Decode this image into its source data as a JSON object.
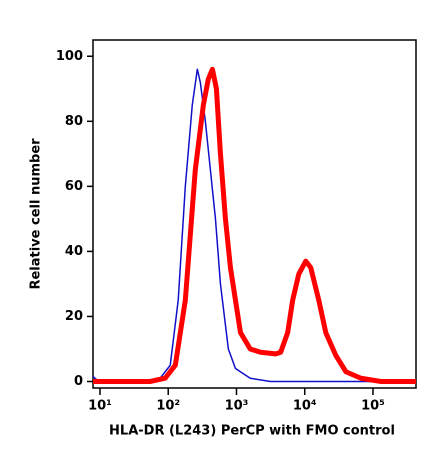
{
  "chart_data": {
    "type": "line",
    "x_label": "HLA-DR (L243) PerCP with FMO control",
    "y_label": "Relative cell number",
    "x_log": true,
    "xlim": [
      7.9,
      427000
    ],
    "ylim": [
      -2,
      105
    ],
    "xticks": [
      {
        "value": 10,
        "label": "10¹"
      },
      {
        "value": 100,
        "label": "10²"
      },
      {
        "value": 1000,
        "label": "10³"
      },
      {
        "value": 10000,
        "label": "10⁴"
      },
      {
        "value": 100000,
        "label": "10⁵"
      }
    ],
    "yticks": [
      0,
      20,
      40,
      60,
      80,
      100
    ],
    "series": [
      {
        "color": "#1010c8",
        "width": 1.5,
        "x": [
          7.9,
          9,
          11,
          54,
          76,
          107,
          140,
          178,
          225,
          267,
          295,
          350,
          415,
          492,
          582,
          760,
          966,
          1590,
          3140,
          427000
        ],
        "values": [
          1.5,
          0.5,
          0,
          0,
          1,
          5,
          25,
          60,
          85,
          96,
          92,
          80,
          65,
          50,
          30,
          10,
          4,
          1,
          0,
          0
        ]
      },
      {
        "color": "#ff0000",
        "width": 5,
        "x": [
          7.9,
          54,
          90,
          127,
          178,
          249,
          327,
          387,
          444,
          508,
          582,
          689,
          816,
          966,
          1146,
          1590,
          2250,
          3750,
          4440,
          5620,
          6660,
          8170,
          10350,
          12250,
          16070,
          20370,
          28580,
          40090,
          66680,
          131000,
          427000
        ],
        "values": [
          0,
          0,
          1,
          5,
          25,
          65,
          85,
          93,
          96,
          90,
          70,
          50,
          35,
          25,
          15,
          10,
          9,
          8.5,
          9,
          15,
          25,
          33,
          37,
          35,
          25,
          15,
          8,
          3,
          1,
          0,
          0
        ]
      }
    ]
  }
}
